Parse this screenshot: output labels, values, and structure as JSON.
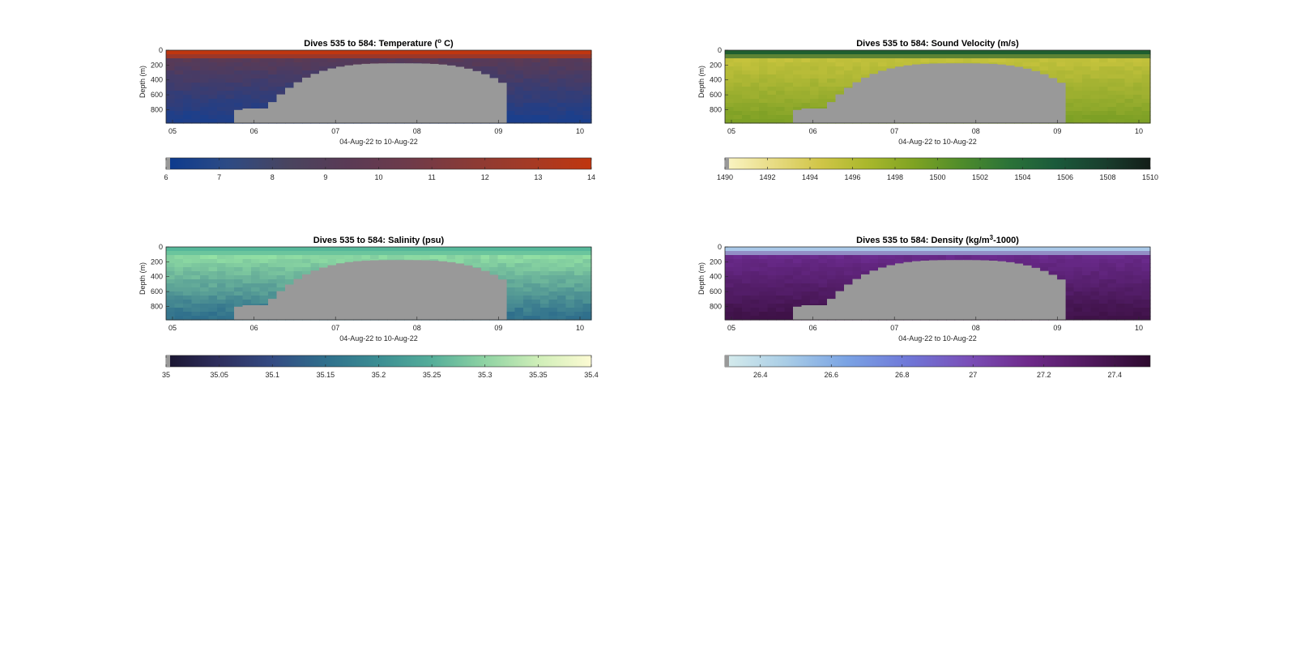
{
  "figure": {
    "background": "#ffffff",
    "land_color": "#999999"
  },
  "chart_data": [
    {
      "type": "heatmap",
      "title": "Dives 535 to 584: Temperature (",
      "title_sup": "o",
      "title_after": " C)",
      "xlabel": "04-Aug-22 to 10-Aug-22",
      "ylabel": "Depth (m)",
      "xticks": [
        "05",
        "06",
        "07",
        "08",
        "09",
        "10"
      ],
      "yticks": [
        0,
        200,
        400,
        600,
        800
      ],
      "ylim": [
        0,
        980
      ],
      "surface_color": "#c0360f",
      "deep_color": "#1b3f8c",
      "mid_color": "#5a3a55",
      "colorbar": {
        "ticks": [
          "6",
          "7",
          "8",
          "9",
          "10",
          "11",
          "12",
          "13",
          "14"
        ],
        "range": [
          6,
          14
        ],
        "colors": [
          "#0b3a8e",
          "#2d4b85",
          "#49445f",
          "#5a3a55",
          "#6e3a4a",
          "#8a3a36",
          "#a53a25",
          "#c0360f"
        ]
      }
    },
    {
      "type": "heatmap",
      "title": "Dives 535 to 584: Sound Velocity (m/s)",
      "title_sup": "",
      "title_after": "",
      "xlabel": "04-Aug-22 to 10-Aug-22",
      "ylabel": "Depth (m)",
      "xticks": [
        "05",
        "06",
        "07",
        "08",
        "09",
        "10"
      ],
      "yticks": [
        0,
        200,
        400,
        600,
        800
      ],
      "ylim": [
        0,
        980
      ],
      "surface_color": "#1f5f2f",
      "deep_color": "#7da025",
      "mid_color": "#c4c23c",
      "colorbar": {
        "ticks": [
          "1490",
          "1492",
          "1494",
          "1496",
          "1498",
          "1500",
          "1502",
          "1504",
          "1506",
          "1508",
          "1510"
        ],
        "range": [
          1490,
          1510
        ],
        "colors": [
          "#fbf5c6",
          "#e8dc85",
          "#d1c648",
          "#aab82c",
          "#7fa323",
          "#4f8c2b",
          "#2b7338",
          "#1a5a3b",
          "#193f2e",
          "#131d18"
        ]
      }
    },
    {
      "type": "heatmap",
      "title": "Dives 535 to 584: Salinity (psu)",
      "title_sup": "",
      "title_after": "",
      "xlabel": "04-Aug-22 to 10-Aug-22",
      "ylabel": "Depth (m)",
      "xticks": [
        "05",
        "06",
        "07",
        "08",
        "09",
        "10"
      ],
      "yticks": [
        0,
        200,
        400,
        600,
        800
      ],
      "ylim": [
        0,
        980
      ],
      "surface_color": "#56b89a",
      "deep_color": "#2f6f8c",
      "mid_color": "#8fdca3",
      "colorbar": {
        "ticks": [
          "35",
          "35.05",
          "35.1",
          "35.15",
          "35.2",
          "35.25",
          "35.3",
          "35.35",
          "35.4"
        ],
        "range": [
          35,
          35.4
        ],
        "colors": [
          "#1a1530",
          "#2f2f5e",
          "#344b83",
          "#2f6f8c",
          "#3c8e93",
          "#55ae9a",
          "#8fd3a3",
          "#cfeeb8",
          "#fdfbd3"
        ]
      }
    },
    {
      "type": "heatmap",
      "title": "Dives 535 to 584: Density (kg/m",
      "title_sup": "3",
      "title_after": "-1000)",
      "xlabel": "04-Aug-22 to 10-Aug-22",
      "ylabel": "Depth (m)",
      "xticks": [
        "05",
        "06",
        "07",
        "08",
        "09",
        "10"
      ],
      "yticks": [
        0,
        200,
        400,
        600,
        800
      ],
      "ylim": [
        0,
        980
      ],
      "surface_color": "#a9c8e8",
      "deep_color": "#3f1248",
      "mid_color": "#6a2a8c",
      "colorbar": {
        "ticks": [
          "26.4",
          "26.6",
          "26.8",
          "27",
          "27.2",
          "27.4"
        ],
        "range": [
          26.3,
          27.5
        ],
        "colors": [
          "#d6ecec",
          "#a9cde6",
          "#7aa3e4",
          "#6f78d8",
          "#7a4fb8",
          "#6e2a8a",
          "#511a5e",
          "#2d0a2e"
        ]
      }
    }
  ]
}
